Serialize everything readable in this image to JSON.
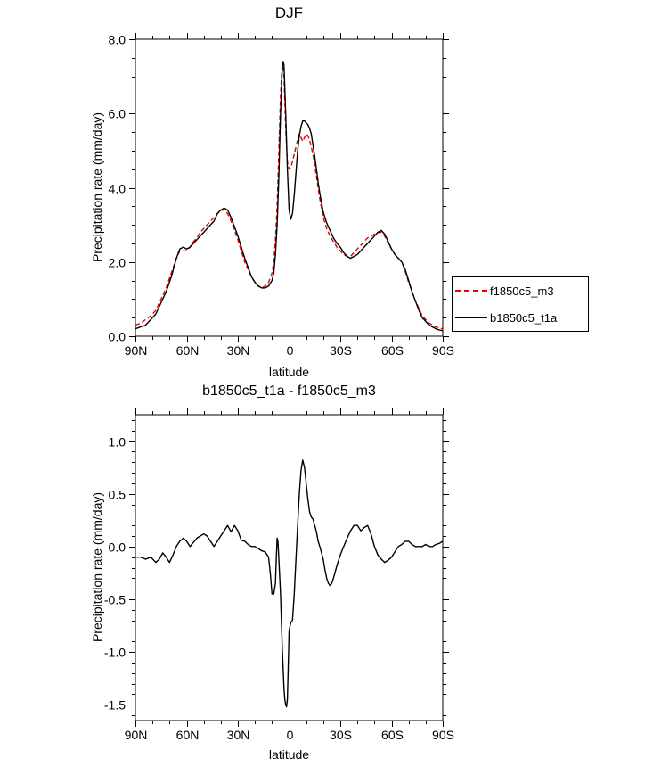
{
  "page": {
    "background": "#ffffff"
  },
  "chart_data": [
    {
      "id": "djf",
      "type": "line",
      "title": "DJF",
      "xlabel": "latitude",
      "ylabel": "Precipitation rate (mm/day)",
      "xlim": [
        90,
        -90
      ],
      "ylim": [
        0,
        8
      ],
      "grid": false,
      "x_ticks": [
        {
          "value": 90,
          "label": "90N"
        },
        {
          "value": 60,
          "label": "60N"
        },
        {
          "value": 30,
          "label": "30N"
        },
        {
          "value": 0,
          "label": "0"
        },
        {
          "value": -30,
          "label": "30S"
        },
        {
          "value": -60,
          "label": "60S"
        },
        {
          "value": -90,
          "label": "90S"
        }
      ],
      "x_minor_step": 10,
      "y_ticks": [
        {
          "value": 0,
          "label": "0.0"
        },
        {
          "value": 2,
          "label": "2.0"
        },
        {
          "value": 4,
          "label": "4.0"
        },
        {
          "value": 6,
          "label": "6.0"
        },
        {
          "value": 8,
          "label": "8.0"
        }
      ],
      "y_minor_step": 0.5,
      "legend": {
        "position": "right-outside",
        "entries": [
          "f1850c5_m3",
          "b1850c5_t1a"
        ]
      },
      "series": [
        {
          "name": "f1850c5_m3",
          "color": "#e60000",
          "dash": "5,3",
          "width": 1.4,
          "lat": [
            90,
            87,
            84,
            81,
            78,
            75,
            72,
            69,
            66,
            64,
            62,
            60,
            58,
            56,
            54,
            52,
            50,
            48,
            46,
            44,
            42,
            40,
            38,
            36,
            34,
            32,
            30,
            28,
            26,
            24,
            22,
            20,
            18,
            16,
            14,
            12,
            10,
            9,
            8,
            7,
            6,
            5,
            4,
            3.5,
            3,
            2,
            1,
            0,
            -1,
            -2,
            -3,
            -4,
            -5,
            -6,
            -7,
            -8,
            -9,
            -10,
            -11,
            -12,
            -13,
            -14,
            -15,
            -16,
            -17,
            -18,
            -20,
            -22,
            -24,
            -26,
            -28,
            -30,
            -32,
            -34,
            -36,
            -38,
            -40,
            -42,
            -44,
            -46,
            -48,
            -50,
            -52,
            -54,
            -56,
            -58,
            -60,
            -62,
            -64,
            -66,
            -68,
            -70,
            -72,
            -74,
            -76,
            -78,
            -80,
            -82,
            -84,
            -86,
            -88,
            -90
          ],
          "values": [
            0.3,
            0.35,
            0.45,
            0.55,
            0.7,
            1.0,
            1.3,
            1.7,
            2.1,
            2.3,
            2.3,
            2.3,
            2.4,
            2.55,
            2.65,
            2.8,
            2.9,
            3.0,
            3.1,
            3.2,
            3.3,
            3.4,
            3.4,
            3.3,
            3.1,
            2.85,
            2.6,
            2.3,
            2.0,
            1.8,
            1.6,
            1.45,
            1.35,
            1.3,
            1.35,
            1.45,
            1.7,
            2.0,
            2.6,
            3.5,
            5.0,
            6.5,
            7.35,
            7.4,
            7.0,
            5.6,
            4.7,
            4.5,
            4.55,
            4.7,
            4.9,
            5.1,
            5.3,
            5.45,
            5.35,
            5.25,
            5.35,
            5.45,
            5.4,
            5.3,
            5.1,
            4.9,
            4.6,
            4.3,
            4.0,
            3.7,
            3.2,
            2.9,
            2.7,
            2.55,
            2.4,
            2.3,
            2.2,
            2.15,
            2.15,
            2.25,
            2.35,
            2.45,
            2.55,
            2.65,
            2.7,
            2.75,
            2.8,
            2.8,
            2.7,
            2.5,
            2.35,
            2.2,
            2.1,
            2.0,
            1.75,
            1.45,
            1.2,
            0.95,
            0.75,
            0.55,
            0.45,
            0.35,
            0.3,
            0.25,
            0.22,
            0.2
          ]
        },
        {
          "name": "b1850c5_t1a",
          "color": "#000000",
          "dash": "",
          "width": 1.4,
          "lat": [
            90,
            87,
            84,
            81,
            78,
            75,
            72,
            69,
            66,
            64,
            62,
            60,
            58,
            56,
            54,
            52,
            50,
            48,
            46,
            44,
            42,
            40,
            38,
            36,
            34,
            32,
            30,
            28,
            26,
            24,
            22,
            20,
            18,
            16,
            14,
            12,
            10,
            9,
            8,
            7,
            6,
            5,
            4,
            3.5,
            3,
            2,
            1,
            0,
            -1,
            -2,
            -3,
            -4,
            -5,
            -6,
            -7,
            -8,
            -9,
            -10,
            -11,
            -12,
            -13,
            -14,
            -15,
            -16,
            -17,
            -18,
            -20,
            -22,
            -24,
            -26,
            -28,
            -30,
            -32,
            -34,
            -36,
            -38,
            -40,
            -42,
            -44,
            -46,
            -48,
            -50,
            -52,
            -54,
            -56,
            -58,
            -60,
            -62,
            -64,
            -66,
            -68,
            -70,
            -72,
            -74,
            -76,
            -78,
            -80,
            -82,
            -84,
            -86,
            -88,
            -90
          ],
          "values": [
            0.2,
            0.25,
            0.3,
            0.45,
            0.6,
            0.9,
            1.2,
            1.6,
            2.1,
            2.35,
            2.4,
            2.35,
            2.4,
            2.5,
            2.6,
            2.7,
            2.8,
            2.9,
            3.0,
            3.1,
            3.3,
            3.4,
            3.45,
            3.4,
            3.2,
            2.95,
            2.7,
            2.4,
            2.1,
            1.85,
            1.6,
            1.45,
            1.35,
            1.3,
            1.3,
            1.35,
            1.5,
            1.7,
            2.2,
            3.0,
            4.3,
            6.0,
            7.2,
            7.4,
            7.3,
            6.0,
            4.5,
            3.4,
            3.15,
            3.3,
            3.8,
            4.4,
            5.0,
            5.4,
            5.65,
            5.8,
            5.8,
            5.75,
            5.7,
            5.6,
            5.45,
            5.15,
            4.85,
            4.5,
            4.15,
            3.85,
            3.35,
            3.05,
            2.85,
            2.65,
            2.5,
            2.4,
            2.25,
            2.15,
            2.1,
            2.15,
            2.2,
            2.3,
            2.4,
            2.5,
            2.6,
            2.7,
            2.8,
            2.85,
            2.75,
            2.55,
            2.35,
            2.2,
            2.1,
            2.0,
            1.8,
            1.5,
            1.2,
            0.95,
            0.7,
            0.5,
            0.4,
            0.3,
            0.25,
            0.2,
            0.17,
            0.15
          ]
        }
      ]
    },
    {
      "id": "diff",
      "type": "line",
      "title": "b1850c5_t1a - f1850c5_m3",
      "xlabel": "latitude",
      "ylabel": "Precipitation rate (mm/day)",
      "xlim": [
        90,
        -90
      ],
      "ylim": [
        -1.65,
        1.25
      ],
      "grid": false,
      "x_ticks": [
        {
          "value": 90,
          "label": "90N"
        },
        {
          "value": 60,
          "label": "60N"
        },
        {
          "value": 30,
          "label": "30N"
        },
        {
          "value": 0,
          "label": "0"
        },
        {
          "value": -30,
          "label": "30S"
        },
        {
          "value": -60,
          "label": "60S"
        },
        {
          "value": -90,
          "label": "90S"
        }
      ],
      "x_minor_step": 10,
      "y_ticks": [
        {
          "value": 1.0,
          "label": "1.0"
        },
        {
          "value": 0.5,
          "label": "0.5"
        },
        {
          "value": 0.0,
          "label": "0.0"
        },
        {
          "value": -0.5,
          "label": "-0.5"
        },
        {
          "value": -1.0,
          "label": "-1.0"
        },
        {
          "value": -1.5,
          "label": "-1.5"
        }
      ],
      "y_minor_step": 0.1,
      "series": [
        {
          "name": "b1850c5_t1a - f1850c5_m3",
          "color": "#000000",
          "dash": "",
          "width": 1.4,
          "lat": [
            90,
            87,
            84,
            81,
            78,
            76,
            74,
            72,
            70,
            68,
            66,
            64,
            62,
            60,
            58,
            56,
            54,
            52,
            50,
            48,
            46,
            44,
            42,
            40,
            38,
            36,
            34,
            32,
            30,
            28,
            26,
            24,
            22,
            20,
            18,
            16,
            14,
            12,
            11,
            10,
            9,
            8,
            7.5,
            7,
            6.5,
            6,
            5,
            4,
            3,
            2.5,
            2,
            1.5,
            1,
            0.5,
            0,
            -1,
            -2,
            -3,
            -4,
            -5,
            -6,
            -7,
            -8,
            -9,
            -10,
            -11,
            -12,
            -13,
            -14,
            -15,
            -16,
            -17,
            -18,
            -19,
            -20,
            -21,
            -22,
            -23,
            -24,
            -25,
            -26,
            -27,
            -28,
            -30,
            -32,
            -34,
            -36,
            -38,
            -40,
            -42,
            -44,
            -46,
            -48,
            -50,
            -52,
            -54,
            -56,
            -58,
            -60,
            -62,
            -64,
            -66,
            -68,
            -70,
            -72,
            -74,
            -76,
            -78,
            -80,
            -82,
            -84,
            -86,
            -88,
            -90
          ],
          "values": [
            -0.1,
            -0.1,
            -0.12,
            -0.1,
            -0.15,
            -0.12,
            -0.06,
            -0.1,
            -0.15,
            -0.08,
            0.0,
            0.05,
            0.08,
            0.05,
            0.0,
            0.04,
            0.08,
            0.1,
            0.12,
            0.1,
            0.05,
            0.0,
            0.05,
            0.1,
            0.15,
            0.2,
            0.14,
            0.2,
            0.15,
            0.06,
            0.05,
            0.02,
            0.0,
            0.0,
            -0.02,
            -0.04,
            -0.05,
            -0.1,
            -0.25,
            -0.45,
            -0.45,
            -0.35,
            -0.12,
            0.08,
            0.05,
            -0.12,
            -0.45,
            -0.95,
            -1.35,
            -1.45,
            -1.5,
            -1.52,
            -1.45,
            -1.15,
            -0.8,
            -0.72,
            -0.7,
            -0.45,
            -0.12,
            0.2,
            0.5,
            0.72,
            0.82,
            0.75,
            0.6,
            0.45,
            0.33,
            0.28,
            0.26,
            0.2,
            0.14,
            0.05,
            0.0,
            -0.06,
            -0.12,
            -0.22,
            -0.3,
            -0.35,
            -0.37,
            -0.35,
            -0.3,
            -0.24,
            -0.18,
            -0.08,
            0.0,
            0.08,
            0.15,
            0.2,
            0.2,
            0.15,
            0.18,
            0.2,
            0.12,
            0.0,
            -0.08,
            -0.12,
            -0.15,
            -0.13,
            -0.1,
            -0.05,
            0.0,
            0.02,
            0.05,
            0.05,
            0.02,
            0.0,
            0.0,
            0.0,
            0.02,
            0.0,
            0.0,
            0.02,
            0.03,
            0.05
          ]
        }
      ]
    }
  ]
}
